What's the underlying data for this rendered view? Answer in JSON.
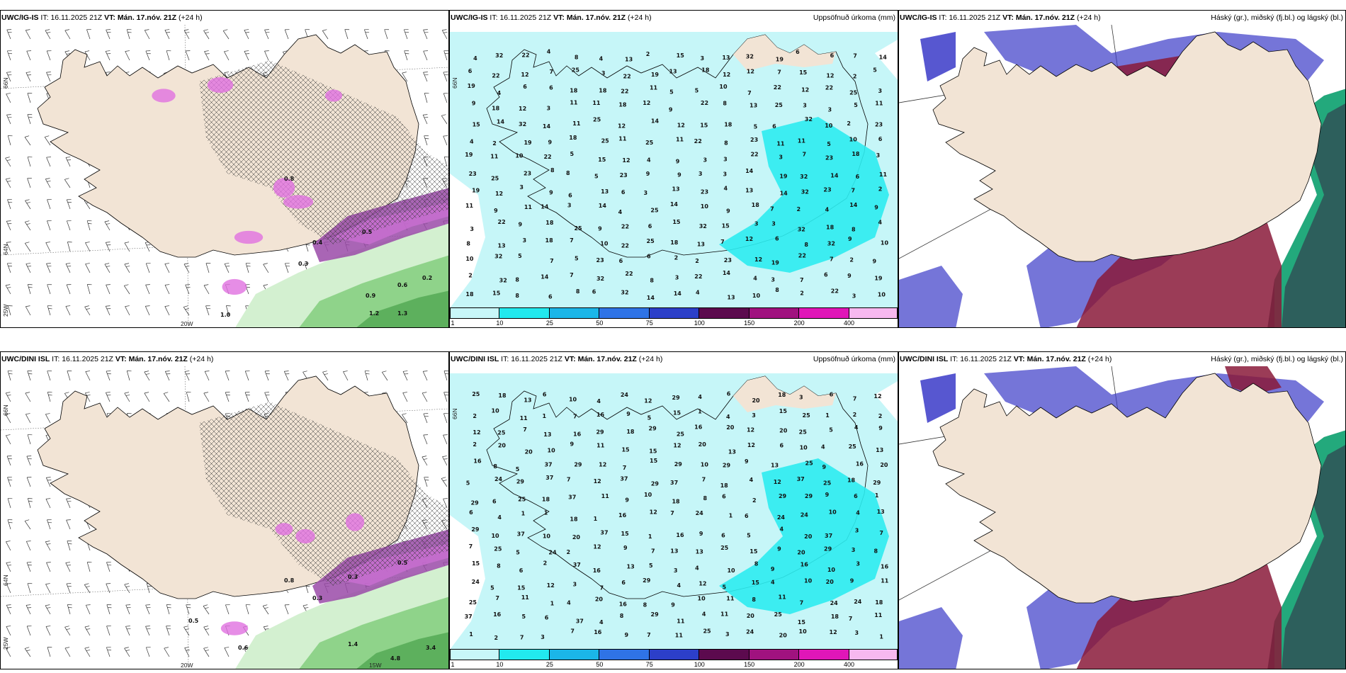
{
  "rows": [
    {
      "model": "UWC/IG-IS",
      "it": "16.11.2025 21Z",
      "vt": "Mán. 17.nóv. 21Z",
      "lead": "(+24 h)"
    },
    {
      "model": "UWC/DINI ISL",
      "it": "16.11.2025 21Z",
      "vt": "Mán. 17.nóv. 21Z",
      "lead": "(+24 h)"
    }
  ],
  "labels": {
    "it_prefix": "IT:",
    "vt_prefix": "VT:",
    "precip_title": "Uppsöfnuð úrkoma (mm)",
    "cloud_title": "Háský (gr.), miðský (fj.bl.) og lágský (bl.)"
  },
  "axis_labels": {
    "lat66": "66N",
    "lat64": "64N",
    "lon25": "25W",
    "lon20": "20W",
    "lon15": "15W"
  },
  "colorbar": {
    "ticks": [
      "1",
      "10",
      "25",
      "50",
      "75",
      "100",
      "150",
      "200",
      "400"
    ],
    "colors": [
      "#c8f7f9",
      "#22e9ee",
      "#1bb6e8",
      "#2f73e6",
      "#2c3fc9",
      "#5c0a4e",
      "#a0127f",
      "#e016b8",
      "#f7b8ef"
    ]
  },
  "colors": {
    "land": "#f2e4d5",
    "precip_light": "#c6f6f8",
    "precip_med": "#2cecf0",
    "cloud_high": "#8a1a3a",
    "cloud_mid": "#3a3ac8",
    "cloud_low": "#2d5f5c",
    "snow": "#e070e0",
    "rain_green": "#5db05d"
  },
  "precip_values_top": [
    "3",
    "3",
    "4",
    "6",
    "9",
    "11",
    "12",
    "13",
    "15",
    "18",
    "19",
    "22",
    "23",
    "25",
    "32",
    "14",
    "10",
    "8",
    "7",
    "5",
    "2"
  ],
  "precip_values_bottom": [
    "5",
    "4",
    "3",
    "7",
    "8",
    "9",
    "10",
    "12",
    "13",
    "15",
    "18",
    "20",
    "24",
    "25",
    "29",
    "37",
    "16",
    "11",
    "6",
    "2",
    "1"
  ],
  "snow_values_top": [
    "1.0",
    "0.8",
    "0.5",
    "0.4",
    "0.3",
    "0.6",
    "0.9",
    "1.2",
    "1.3",
    "0.2"
  ],
  "snow_values_bottom": [
    "0.5",
    "0.3",
    "0.6",
    "0.8",
    "1.4",
    "4.8",
    "3.4",
    "0.5",
    "0.3"
  ]
}
